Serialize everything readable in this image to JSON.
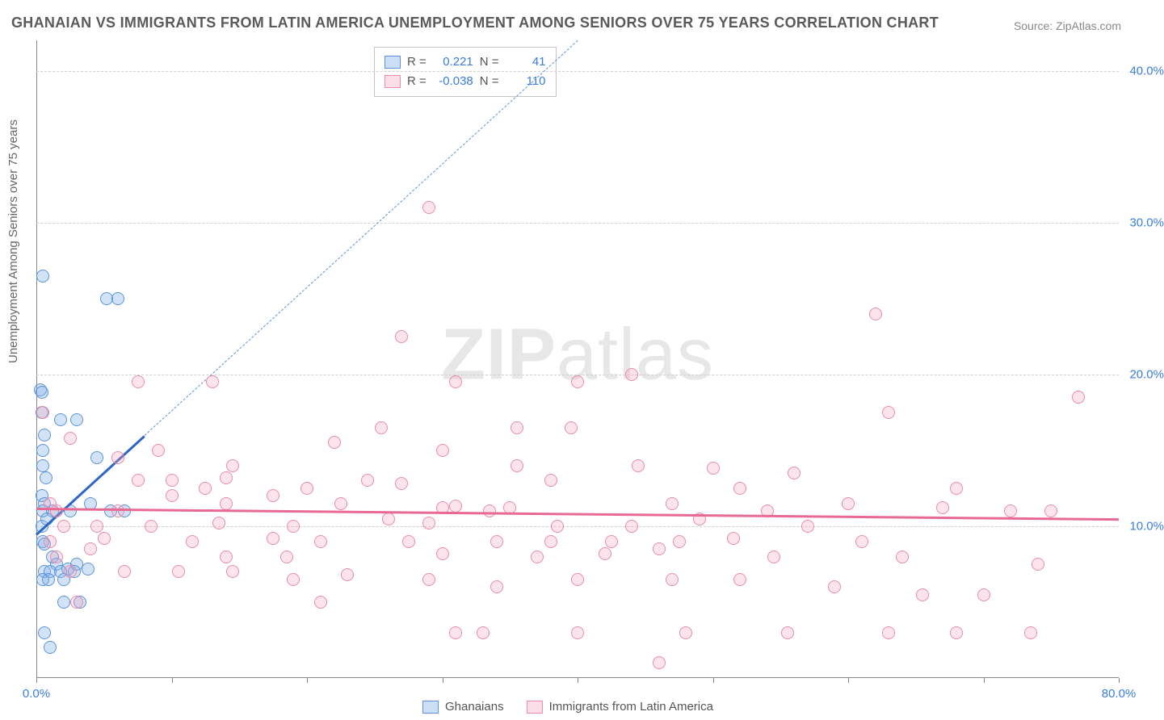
{
  "title": "GHANAIAN VS IMMIGRANTS FROM LATIN AMERICA UNEMPLOYMENT AMONG SENIORS OVER 75 YEARS CORRELATION CHART",
  "source": "Source: ZipAtlas.com",
  "ylabel": "Unemployment Among Seniors over 75 years",
  "watermark_bold": "ZIP",
  "watermark_rest": "atlas",
  "legend_top": {
    "rows": [
      {
        "swatch": "blue",
        "r_label": "R =",
        "r_value": "0.221",
        "n_label": "N =",
        "n_value": "41"
      },
      {
        "swatch": "pink",
        "r_label": "R =",
        "r_value": "-0.038",
        "n_label": "N =",
        "n_value": "110"
      }
    ]
  },
  "legend_bottom": {
    "items": [
      {
        "swatch": "blue",
        "label": "Ghanaians"
      },
      {
        "swatch": "pink",
        "label": "Immigrants from Latin America"
      }
    ]
  },
  "chart": {
    "type": "scatter",
    "background_color": "#ffffff",
    "grid_color": "#d0d0d0",
    "axis_color": "#888888",
    "text_color": "#666666",
    "tick_color": "#3b7dd8",
    "title_fontsize": 18,
    "label_fontsize": 15,
    "tick_fontsize": 15,
    "xlim": [
      0,
      80
    ],
    "ylim": [
      0,
      42
    ],
    "xticks": [
      0,
      10,
      20,
      30,
      40,
      50,
      60,
      70,
      80
    ],
    "xtick_labels": [
      "0.0%",
      "",
      "",
      "",
      "",
      "",
      "",
      "",
      "80.0%"
    ],
    "yticks": [
      10,
      20,
      30,
      40
    ],
    "ytick_labels": [
      "10.0%",
      "20.0%",
      "30.0%",
      "40.0%"
    ],
    "marker_size": 16,
    "series": [
      {
        "name": "Ghanaians",
        "color_fill": "rgba(129,175,231,0.35)",
        "color_stroke": "#5b94d6",
        "points": [
          [
            0.5,
            26.5
          ],
          [
            5.2,
            25.0
          ],
          [
            6.0,
            25.0
          ],
          [
            0.3,
            19.0
          ],
          [
            0.4,
            18.8
          ],
          [
            1.8,
            17.0
          ],
          [
            3.0,
            17.0
          ],
          [
            0.5,
            15.0
          ],
          [
            0.6,
            16.0
          ],
          [
            0.5,
            14.0
          ],
          [
            4.5,
            14.5
          ],
          [
            0.7,
            13.2
          ],
          [
            0.4,
            12.0
          ],
          [
            0.6,
            11.5
          ],
          [
            4.0,
            11.5
          ],
          [
            0.5,
            11.0
          ],
          [
            1.2,
            11.0
          ],
          [
            2.5,
            11.0
          ],
          [
            5.5,
            11.0
          ],
          [
            6.5,
            11.0
          ],
          [
            0.4,
            10.0
          ],
          [
            0.8,
            10.5
          ],
          [
            0.5,
            9.0
          ],
          [
            0.6,
            8.8
          ],
          [
            1.2,
            8.0
          ],
          [
            1.5,
            7.5
          ],
          [
            2.3,
            7.2
          ],
          [
            3.0,
            7.5
          ],
          [
            3.8,
            7.2
          ],
          [
            0.6,
            7.0
          ],
          [
            1.0,
            7.0
          ],
          [
            1.8,
            7.0
          ],
          [
            2.8,
            7.0
          ],
          [
            0.5,
            6.5
          ],
          [
            0.9,
            6.5
          ],
          [
            2.0,
            6.5
          ],
          [
            2.0,
            5.0
          ],
          [
            3.2,
            5.0
          ],
          [
            0.6,
            3.0
          ],
          [
            1.0,
            2.0
          ],
          [
            0.4,
            17.5
          ]
        ],
        "trend": {
          "x1": 0,
          "y1": 9.5,
          "x2": 8,
          "y2": 16.0,
          "color": "#2e66c4",
          "width": 3,
          "style": "solid"
        },
        "trend_ext": {
          "x1": 8,
          "y1": 16.0,
          "x2": 40,
          "y2": 42.0,
          "color": "#5b94d6",
          "width": 1.5,
          "style": "dashed"
        }
      },
      {
        "name": "Immigrants from Latin America",
        "color_fill": "rgba(243,164,188,0.30)",
        "color_stroke": "#e98ca9",
        "points": [
          [
            29.0,
            31.0
          ],
          [
            62.0,
            24.0
          ],
          [
            27.0,
            22.5
          ],
          [
            7.5,
            19.5
          ],
          [
            13.0,
            19.5
          ],
          [
            31.0,
            19.5
          ],
          [
            40.0,
            19.5
          ],
          [
            44.0,
            20.0
          ],
          [
            77.0,
            18.5
          ],
          [
            63.0,
            17.5
          ],
          [
            2.5,
            15.8
          ],
          [
            25.5,
            16.5
          ],
          [
            35.5,
            16.5
          ],
          [
            39.5,
            16.5
          ],
          [
            22.0,
            15.5
          ],
          [
            6.0,
            14.5
          ],
          [
            9.0,
            15.0
          ],
          [
            14.5,
            14.0
          ],
          [
            30.0,
            15.0
          ],
          [
            0.5,
            17.5
          ],
          [
            10.0,
            13.0
          ],
          [
            14.0,
            13.2
          ],
          [
            35.5,
            14.0
          ],
          [
            44.5,
            14.0
          ],
          [
            50.0,
            13.8
          ],
          [
            56.0,
            13.5
          ],
          [
            1.0,
            11.5
          ],
          [
            7.5,
            13.0
          ],
          [
            12.5,
            12.5
          ],
          [
            20.0,
            12.5
          ],
          [
            24.5,
            13.0
          ],
          [
            27.0,
            12.8
          ],
          [
            38.0,
            13.0
          ],
          [
            52.0,
            12.5
          ],
          [
            68.0,
            12.5
          ],
          [
            1.5,
            11.0
          ],
          [
            6.0,
            11.0
          ],
          [
            10.0,
            12.0
          ],
          [
            14.0,
            11.5
          ],
          [
            17.5,
            12.0
          ],
          [
            22.5,
            11.5
          ],
          [
            30.0,
            11.2
          ],
          [
            31.0,
            11.3
          ],
          [
            33.5,
            11.0
          ],
          [
            35.0,
            11.2
          ],
          [
            47.0,
            11.5
          ],
          [
            54.0,
            11.0
          ],
          [
            60.0,
            11.5
          ],
          [
            67.0,
            11.2
          ],
          [
            72.0,
            11.0
          ],
          [
            75.0,
            11.0
          ],
          [
            2.0,
            10.0
          ],
          [
            4.5,
            10.0
          ],
          [
            8.5,
            10.0
          ],
          [
            13.5,
            10.2
          ],
          [
            19.0,
            10.0
          ],
          [
            26.0,
            10.5
          ],
          [
            29.0,
            10.2
          ],
          [
            38.5,
            10.0
          ],
          [
            44.0,
            10.0
          ],
          [
            49.0,
            10.5
          ],
          [
            57.0,
            10.0
          ],
          [
            1.0,
            9.0
          ],
          [
            5.0,
            9.2
          ],
          [
            11.5,
            9.0
          ],
          [
            17.5,
            9.2
          ],
          [
            21.0,
            9.0
          ],
          [
            27.5,
            9.0
          ],
          [
            34.0,
            9.0
          ],
          [
            38.0,
            9.0
          ],
          [
            42.5,
            9.0
          ],
          [
            47.5,
            9.0
          ],
          [
            51.5,
            9.2
          ],
          [
            61.0,
            9.0
          ],
          [
            1.5,
            8.0
          ],
          [
            4.0,
            8.5
          ],
          [
            14.0,
            8.0
          ],
          [
            18.5,
            8.0
          ],
          [
            30.0,
            8.2
          ],
          [
            37.0,
            8.0
          ],
          [
            42.0,
            8.2
          ],
          [
            46.0,
            8.5
          ],
          [
            54.5,
            8.0
          ],
          [
            64.0,
            8.0
          ],
          [
            74.0,
            7.5
          ],
          [
            2.5,
            7.0
          ],
          [
            6.5,
            7.0
          ],
          [
            10.5,
            7.0
          ],
          [
            14.5,
            7.0
          ],
          [
            19.0,
            6.5
          ],
          [
            23.0,
            6.8
          ],
          [
            29.0,
            6.5
          ],
          [
            34.0,
            6.0
          ],
          [
            40.0,
            6.5
          ],
          [
            47.0,
            6.5
          ],
          [
            52.0,
            6.5
          ],
          [
            59.0,
            6.0
          ],
          [
            65.5,
            5.5
          ],
          [
            70.0,
            5.5
          ],
          [
            3.0,
            5.0
          ],
          [
            21.0,
            5.0
          ],
          [
            31.0,
            3.0
          ],
          [
            33.0,
            3.0
          ],
          [
            40.0,
            3.0
          ],
          [
            48.0,
            3.0
          ],
          [
            55.5,
            3.0
          ],
          [
            63.0,
            3.0
          ],
          [
            68.0,
            3.0
          ],
          [
            73.5,
            3.0
          ],
          [
            46.0,
            1.0
          ]
        ],
        "trend": {
          "x1": 0,
          "y1": 11.2,
          "x2": 80,
          "y2": 10.5,
          "color": "#e86a93",
          "width": 3,
          "style": "solid"
        }
      }
    ]
  }
}
